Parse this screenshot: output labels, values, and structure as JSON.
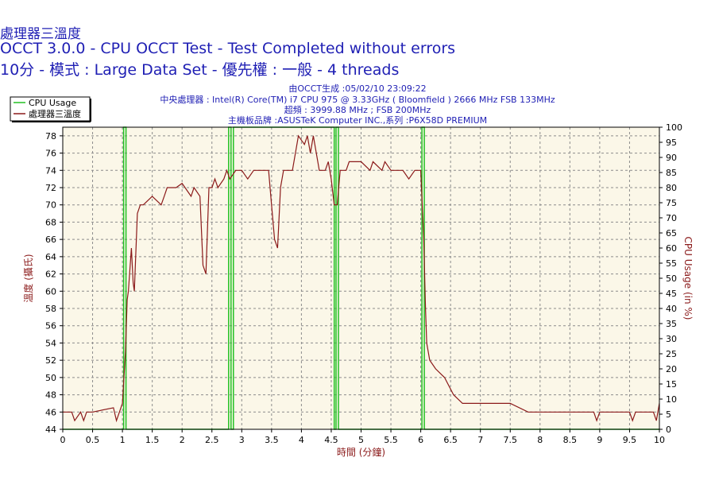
{
  "titles": {
    "title": "處理器三溫度",
    "subtitle": "OCCT 3.0.0 - CPU OCCT Test - Test Completed without errors",
    "detail": "10分 - 模式 : Large Data Set - 優先權 : 一般 - 4 threads"
  },
  "info": {
    "generated": "由OCCT生成 :05/02/10 23:09:22",
    "cpu": "中央處理器 : Intel(R) Core(TM) i7 CPU 975 @ 3.33GHz ( Bloomfield ) 2666 MHz FSB 133MHz",
    "clock": "超頻 : 3999.88 MHz ; FSB 200MHz",
    "board": "主機板品牌 :ASUSTeK Computer INC.,系列 :P6X58D PREMIUM"
  },
  "colors": {
    "plot_bg": "#fbf7e8",
    "grid": "#8c8c8c",
    "cpu_line": "#22c122",
    "temp_line": "#8b1a1a",
    "title": "#1f1fb4",
    "axis_label": "#8b1a1a"
  },
  "chart_data": {
    "type": "line",
    "title": "處理器三溫度",
    "xlabel": "時間 (分鐘)",
    "ylabel": "溫度 (攝氏)",
    "y2label": "CPU Usage (in %)",
    "xlim": [
      0,
      10
    ],
    "ylim": [
      44,
      79
    ],
    "y2lim": [
      0,
      100
    ],
    "x_ticks": [
      0,
      0.5,
      1,
      1.5,
      2,
      2.5,
      3,
      3.5,
      4,
      4.5,
      5,
      5.5,
      6,
      6.5,
      7,
      7.5,
      8,
      8.5,
      9,
      9.5,
      10
    ],
    "y_ticks": [
      44,
      46,
      48,
      50,
      52,
      54,
      56,
      58,
      60,
      62,
      64,
      66,
      68,
      70,
      72,
      74,
      76,
      78
    ],
    "y2_ticks": [
      0,
      5,
      10,
      15,
      20,
      25,
      30,
      35,
      40,
      45,
      50,
      55,
      60,
      65,
      70,
      75,
      80,
      85,
      90,
      95,
      100
    ],
    "grid": true,
    "legend_position": "top-left",
    "series": [
      {
        "name": "CPU Usage",
        "axis": "right",
        "x": [
          0,
          1.02,
          1.02,
          1.06,
          1.06,
          2.78,
          2.78,
          2.82,
          2.82,
          2.86,
          2.86,
          4.55,
          4.55,
          4.58,
          4.58,
          4.62,
          4.62,
          6.02,
          6.02,
          6.06,
          6.06,
          10
        ],
        "values": [
          0,
          0,
          100,
          100,
          0,
          0,
          100,
          100,
          0,
          0,
          100,
          100,
          0,
          0,
          100,
          100,
          0,
          0,
          100,
          100,
          0,
          0
        ]
      },
      {
        "name": "處理器三溫度",
        "axis": "left",
        "x": [
          0,
          0.15,
          0.2,
          0.3,
          0.35,
          0.4,
          0.5,
          0.85,
          0.9,
          0.95,
          1.0,
          1.05,
          1.08,
          1.1,
          1.15,
          1.18,
          1.2,
          1.25,
          1.3,
          1.35,
          1.5,
          1.65,
          1.7,
          1.75,
          1.9,
          2.0,
          2.15,
          2.2,
          2.3,
          2.35,
          2.4,
          2.45,
          2.5,
          2.55,
          2.6,
          2.7,
          2.75,
          2.8,
          2.9,
          3.0,
          3.1,
          3.2,
          3.3,
          3.45,
          3.5,
          3.55,
          3.6,
          3.65,
          3.7,
          3.85,
          3.95,
          4.05,
          4.1,
          4.15,
          4.2,
          4.3,
          4.4,
          4.45,
          4.5,
          4.55,
          4.6,
          4.65,
          4.75,
          4.8,
          5.0,
          5.15,
          5.2,
          5.35,
          5.4,
          5.5,
          5.7,
          5.8,
          5.9,
          6.0,
          6.05,
          6.08,
          6.1,
          6.15,
          6.25,
          6.4,
          6.55,
          6.7,
          7.0,
          7.5,
          7.8,
          8.0,
          8.5,
          8.9,
          8.95,
          9.0,
          9.5,
          9.55,
          9.6,
          9.9,
          9.95,
          10
        ],
        "values": [
          46,
          46,
          45,
          46,
          45,
          46,
          46,
          46.5,
          45,
          46,
          47,
          53,
          59,
          60,
          65,
          61,
          60,
          69,
          70,
          70,
          71,
          70,
          71,
          72,
          72,
          72.5,
          71,
          72,
          71,
          63,
          62,
          72,
          72,
          73,
          72,
          73,
          74,
          73,
          74,
          74,
          73,
          74,
          74,
          74,
          70,
          66,
          65,
          72,
          74,
          74,
          78,
          77,
          78,
          76,
          78,
          74,
          74,
          75,
          73,
          70,
          70,
          74,
          74,
          75,
          75,
          74,
          75,
          74,
          75,
          74,
          74,
          73,
          74,
          74,
          66,
          58,
          54,
          52,
          51,
          50,
          48,
          47,
          47,
          47,
          46,
          46,
          46,
          46,
          45,
          46,
          46,
          45,
          46,
          46,
          45,
          47
        ]
      }
    ]
  }
}
